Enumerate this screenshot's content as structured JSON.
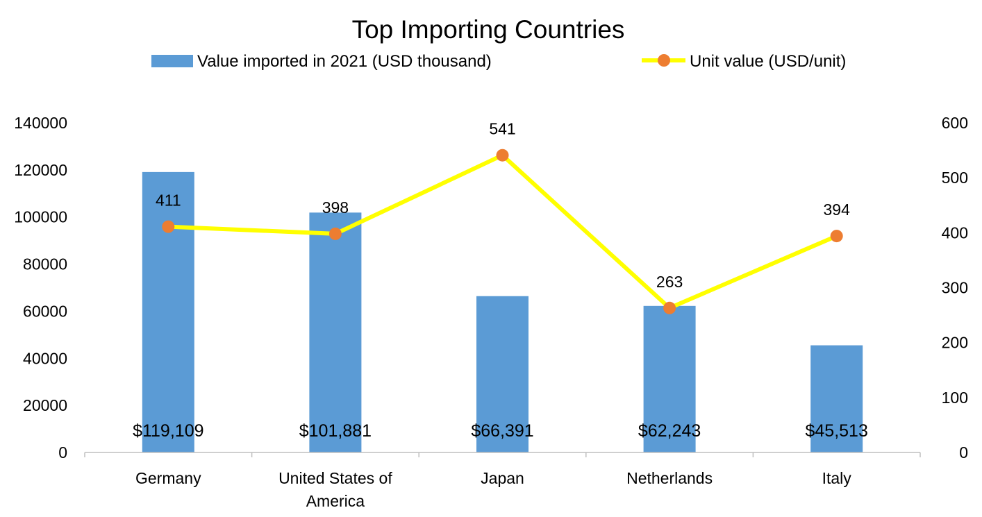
{
  "chart_data": {
    "type": "bar",
    "title": "Top Importing Countries",
    "categories": [
      "Germany",
      "United States of America",
      "Japan",
      "Netherlands",
      "Italy"
    ],
    "series": [
      {
        "name": "Value imported in 2021 (USD thousand)",
        "type": "bar",
        "axis": "left",
        "color": "#5B9BD5",
        "values": [
          119109,
          101881,
          66391,
          62243,
          45513
        ],
        "data_labels": [
          "$119,109",
          "$101,881",
          "$66,391",
          "$62,243",
          "$45,513"
        ]
      },
      {
        "name": "Unit value (USD/unit)",
        "type": "line",
        "axis": "right",
        "line_color": "#FFFF00",
        "marker_color": "#ED7D31",
        "values": [
          411,
          398,
          541,
          263,
          394
        ],
        "data_labels": [
          "411",
          "398",
          "541",
          "263",
          "394"
        ]
      }
    ],
    "y_left": {
      "ylim": [
        0,
        140000
      ],
      "ticks": [
        "0",
        "20000",
        "40000",
        "60000",
        "80000",
        "100000",
        "120000",
        "140000"
      ]
    },
    "y_right": {
      "ylim": [
        0,
        600
      ],
      "ticks": [
        "0",
        "100",
        "200",
        "300",
        "400",
        "500",
        "600"
      ]
    },
    "legend": "top",
    "grid": false
  }
}
